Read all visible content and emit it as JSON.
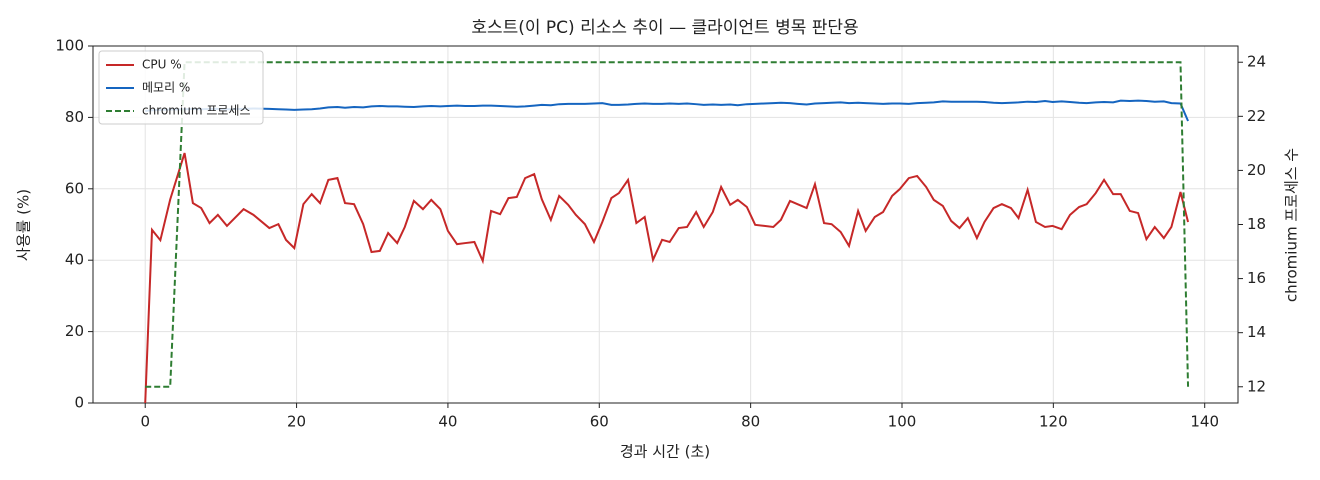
{
  "chart_data": {
    "type": "line",
    "title": "호스트(이 PC) 리소스 추이 — 클라이언트 병목 판단용",
    "x_label": "경과 시간 (초)",
    "y_label": "사용률 (%)",
    "y2_label": "chromium 프로세스 수",
    "xlim": [
      -6.9,
      144.4
    ],
    "ylim": [
      0,
      100
    ],
    "y2lim": [
      11.4,
      24.6
    ],
    "xticks": [
      0,
      20,
      40,
      60,
      80,
      100,
      120,
      140
    ],
    "yticks": [
      0,
      20,
      40,
      60,
      80,
      100
    ],
    "y2ticks": [
      12,
      14,
      16,
      18,
      20,
      22,
      24
    ],
    "grid": true,
    "legend": "upper left",
    "x": [
      0,
      0.9,
      2,
      3.3,
      5.2,
      6.3,
      7.4,
      8.5,
      9.6,
      10.8,
      13,
      14.3,
      16.4,
      17.6,
      18.6,
      19.7,
      20.9,
      22,
      23.1,
      24.2,
      25.4,
      26.4,
      27.6,
      28.8,
      29.9,
      31,
      32.1,
      33.3,
      34.3,
      35.5,
      36.7,
      37.8,
      39,
      40,
      41.2,
      42.3,
      43.5,
      44.6,
      45.7,
      46.9,
      48,
      49.1,
      50.2,
      51.4,
      52.4,
      53.6,
      54.7,
      55.9,
      56.9,
      58.1,
      59.3,
      60.4,
      61.6,
      62.6,
      63.8,
      64.9,
      66,
      67.1,
      68.3,
      69.3,
      70.5,
      71.6,
      72.8,
      73.8,
      75,
      76.1,
      77.3,
      78.3,
      79.5,
      80.6,
      81.8,
      83,
      84,
      85.2,
      86.2,
      87.4,
      88.5,
      89.7,
      90.7,
      91.9,
      93,
      94.2,
      95.2,
      96.4,
      97.5,
      98.7,
      99.7,
      100.9,
      102,
      103.2,
      104.2,
      105.4,
      106.5,
      107.6,
      108.7,
      109.9,
      110.9,
      112.1,
      113.2,
      114.4,
      115.4,
      116.6,
      117.7,
      118.9,
      119.9,
      121.1,
      122.2,
      123.4,
      124.4,
      125.6,
      126.7,
      127.9,
      128.9,
      130.1,
      131.2,
      132.3,
      133.4,
      134.6,
      135.6,
      136.8,
      137.8
    ],
    "series": [
      {
        "name": "CPU %",
        "color": "#c62828",
        "dash": false,
        "values": [
          0,
          48.5,
          45.6,
          57,
          70,
          56,
          54.6,
          50.4,
          52.7,
          49.6,
          54.3,
          52.7,
          49,
          50.1,
          45.7,
          43.4,
          55.7,
          58.5,
          56,
          62.5,
          63,
          56,
          55.7,
          50.1,
          42.3,
          42.6,
          47.6,
          44.8,
          49.3,
          56.6,
          54.3,
          56.9,
          54.3,
          48.2,
          44.5,
          44.8,
          45.1,
          39.8,
          53.8,
          52.9,
          57.4,
          57.7,
          63,
          64.1,
          57.1,
          51.3,
          58,
          55.5,
          52.7,
          50.1,
          45.1,
          50.7,
          57.4,
          58.8,
          62.5,
          50.4,
          52.1,
          40.1,
          45.7,
          45.1,
          49,
          49.3,
          53.5,
          49.3,
          53.5,
          60.5,
          55.5,
          56.9,
          54.9,
          49.9,
          49.6,
          49.3,
          51.3,
          56.6,
          55.7,
          54.6,
          61.3,
          50.4,
          50.1,
          47.9,
          44,
          53.8,
          48.2,
          52.1,
          53.5,
          58,
          59.9,
          63,
          63.6,
          60.5,
          56.9,
          55.2,
          51,
          49,
          51.8,
          46.2,
          50.7,
          54.6,
          55.7,
          54.6,
          51.8,
          59.7,
          50.7,
          49.3,
          49.6,
          48.7,
          52.7,
          54.9,
          55.7,
          58.8,
          62.5,
          58.5,
          58.5,
          53.8,
          53.2,
          45.9,
          49.3,
          46.2,
          49.3,
          59.1,
          50.7
        ]
      },
      {
        "name": "메모리 %",
        "color": "#1565c0",
        "dash": false,
        "values": [
          81.8,
          82.0,
          82.1,
          82.2,
          82.3,
          82.4,
          82.3,
          82.4,
          82.4,
          82.3,
          82.4,
          82.5,
          82.4,
          82.3,
          82.2,
          82.1,
          82.2,
          82.3,
          82.5,
          82.8,
          82.9,
          82.7,
          82.9,
          82.8,
          83.1,
          83.2,
          83.1,
          83.1,
          83.0,
          82.9,
          83.1,
          83.2,
          83.1,
          83.2,
          83.3,
          83.2,
          83.2,
          83.3,
          83.3,
          83.2,
          83.1,
          83.0,
          83.1,
          83.3,
          83.5,
          83.4,
          83.7,
          83.8,
          83.8,
          83.8,
          83.9,
          84.0,
          83.5,
          83.5,
          83.6,
          83.8,
          83.9,
          83.8,
          83.8,
          83.9,
          83.8,
          83.9,
          83.7,
          83.5,
          83.6,
          83.5,
          83.6,
          83.4,
          83.7,
          83.8,
          83.9,
          84.0,
          84.1,
          84.0,
          83.8,
          83.6,
          83.9,
          84.0,
          84.1,
          84.2,
          84.0,
          84.1,
          84.0,
          83.9,
          83.8,
          83.9,
          83.9,
          83.8,
          84.0,
          84.1,
          84.2,
          84.5,
          84.4,
          84.4,
          84.4,
          84.4,
          84.3,
          84.1,
          84.0,
          84.1,
          84.2,
          84.4,
          84.3,
          84.6,
          84.3,
          84.5,
          84.3,
          84.1,
          84.0,
          84.2,
          84.3,
          84.2,
          84.7,
          84.6,
          84.7,
          84.6,
          84.4,
          84.5,
          84.0,
          83.9,
          79.0
        ]
      },
      {
        "name": "chromium 프로세스",
        "color": "#2e7d32",
        "dash": true,
        "axis": "y2",
        "values": [
          12,
          12,
          12,
          12,
          24,
          24,
          24,
          24,
          24,
          24,
          24,
          24,
          24,
          24,
          24,
          24,
          24,
          24,
          24,
          24,
          24,
          24,
          24,
          24,
          24,
          24,
          24,
          24,
          24,
          24,
          24,
          24,
          24,
          24,
          24,
          24,
          24,
          24,
          24,
          24,
          24,
          24,
          24,
          24,
          24,
          24,
          24,
          24,
          24,
          24,
          24,
          24,
          24,
          24,
          24,
          24,
          24,
          24,
          24,
          24,
          24,
          24,
          24,
          24,
          24,
          24,
          24,
          24,
          24,
          24,
          24,
          24,
          24,
          24,
          24,
          24,
          24,
          24,
          24,
          24,
          24,
          24,
          24,
          24,
          24,
          24,
          24,
          24,
          24,
          24,
          24,
          24,
          24,
          24,
          24,
          24,
          24,
          24,
          24,
          24,
          24,
          24,
          24,
          24,
          24,
          24,
          24,
          24,
          24,
          24,
          24,
          24,
          24,
          24,
          24,
          24,
          24,
          24,
          24,
          24,
          12
        ]
      }
    ]
  }
}
